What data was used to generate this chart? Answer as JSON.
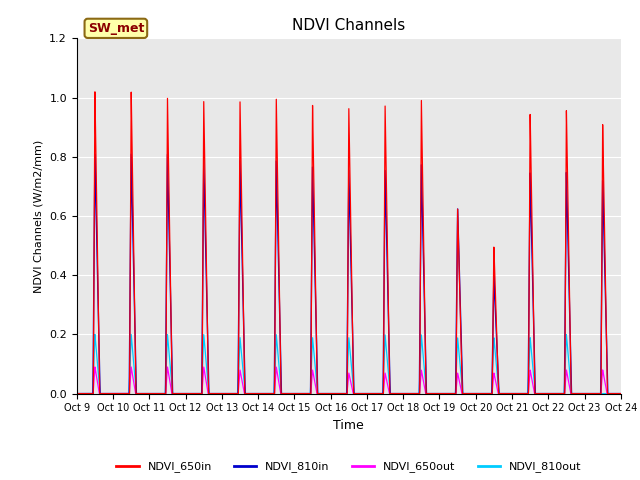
{
  "title": "NDVI Channels",
  "ylabel": "NDVI Channels (W/m2/mm)",
  "xlabel": "Time",
  "ylim": [
    0.0,
    1.2
  ],
  "plot_bg_color": "#e8e8e8",
  "fig_bg_color": "#ffffff",
  "annotation_text": "SW_met",
  "annotation_bg": "#ffffaa",
  "annotation_border": "#8B6914",
  "annotation_text_color": "#8B0000",
  "x_tick_labels": [
    "Oct 9",
    "Oct 10",
    "Oct 11",
    "Oct 12",
    "Oct 13",
    "Oct 14",
    "Oct 15",
    "Oct 16",
    "Oct 17",
    "Oct 18",
    "Oct 19",
    "Oct 20",
    "Oct 21",
    "Oct 22",
    "Oct 23",
    "Oct 24"
  ],
  "legend_entries": [
    "NDVI_650in",
    "NDVI_810in",
    "NDVI_650out",
    "NDVI_810out"
  ],
  "legend_colors": [
    "#ff0000",
    "#0000cc",
    "#ff00ff",
    "#00ccff"
  ],
  "num_days": 15,
  "peaks_650in": [
    1.02,
    1.02,
    1.0,
    0.99,
    0.99,
    1.0,
    0.98,
    0.97,
    0.98,
    1.0,
    0.63,
    0.5,
    0.95,
    0.96,
    0.91
  ],
  "peaks_810in": [
    0.81,
    0.81,
    0.81,
    0.79,
    0.79,
    0.79,
    0.77,
    0.76,
    0.76,
    0.78,
    0.63,
    0.4,
    0.75,
    0.75,
    0.72
  ],
  "peaks_650out": [
    0.09,
    0.09,
    0.09,
    0.09,
    0.08,
    0.09,
    0.08,
    0.07,
    0.07,
    0.08,
    0.07,
    0.07,
    0.08,
    0.08,
    0.08
  ],
  "peaks_810out": [
    0.2,
    0.2,
    0.2,
    0.2,
    0.19,
    0.2,
    0.19,
    0.19,
    0.2,
    0.2,
    0.19,
    0.19,
    0.19,
    0.2,
    0.0
  ]
}
